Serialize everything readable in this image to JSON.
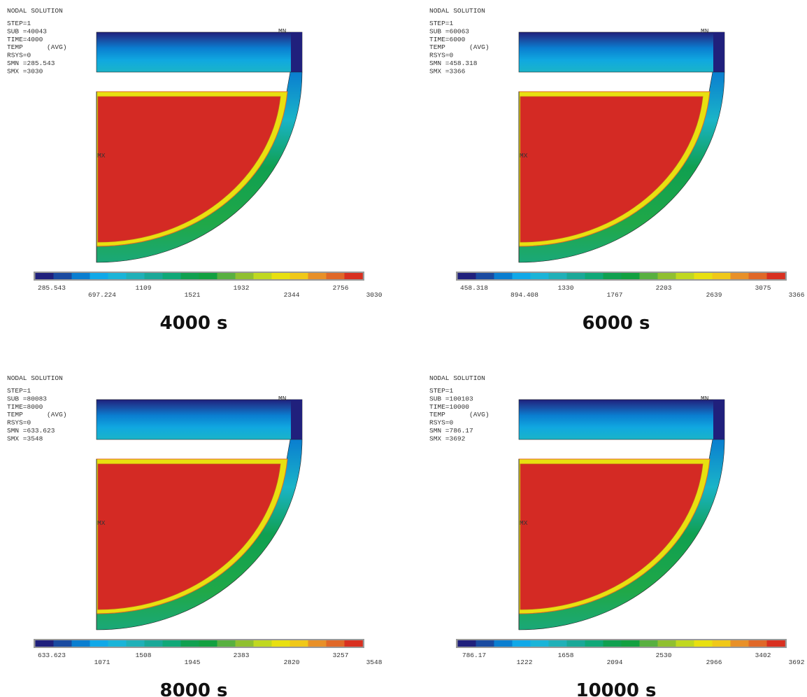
{
  "panels": [
    {
      "header": [
        "NODAL SOLUTION",
        "STEP=1",
        "SUB =40043",
        "TIME=4000",
        "TEMP      (AVG)",
        "RSYS=0",
        "SMN =285.543",
        "SMX =3030"
      ],
      "min_marker": "MN",
      "max_marker": "MX",
      "legend_labels": [
        "285.543",
        "697.224",
        "1109",
        "1521",
        "1932",
        "2344",
        "2756",
        "3030"
      ],
      "caption": "4000 s"
    },
    {
      "header": [
        "NODAL SOLUTION",
        "STEP=1",
        "SUB =60063",
        "TIME=6000",
        "TEMP      (AVG)",
        "RSYS=0",
        "SMN =458.318",
        "SMX =3366"
      ],
      "min_marker": "MN",
      "max_marker": "MX",
      "legend_labels": [
        "458.318",
        "894.408",
        "1330",
        "1767",
        "2203",
        "2639",
        "3075",
        "3366"
      ],
      "caption": "6000 s"
    },
    {
      "header": [
        "NODAL SOLUTION",
        "STEP=1",
        "SUB =80083",
        "TIME=8000",
        "TEMP      (AVG)",
        "RSYS=0",
        "SMN =633.623",
        "SMX =3548"
      ],
      "min_marker": "MN",
      "max_marker": "MX",
      "legend_labels": [
        "633.623",
        "1071",
        "1508",
        "1945",
        "2383",
        "2820",
        "3257",
        "3548"
      ],
      "caption": "8000 s"
    },
    {
      "header": [
        "NODAL SOLUTION",
        "STEP=1",
        "SUB =100103",
        "TIME=10000",
        "TEMP      (AVG)",
        "RSYS=0",
        "SMN =786.17",
        "SMX =3692"
      ],
      "min_marker": "MN",
      "max_marker": "MX",
      "legend_labels": [
        "786.17",
        "1222",
        "1658",
        "2094",
        "2530",
        "2966",
        "3402",
        "3692"
      ],
      "caption": "10000 s"
    }
  ]
}
